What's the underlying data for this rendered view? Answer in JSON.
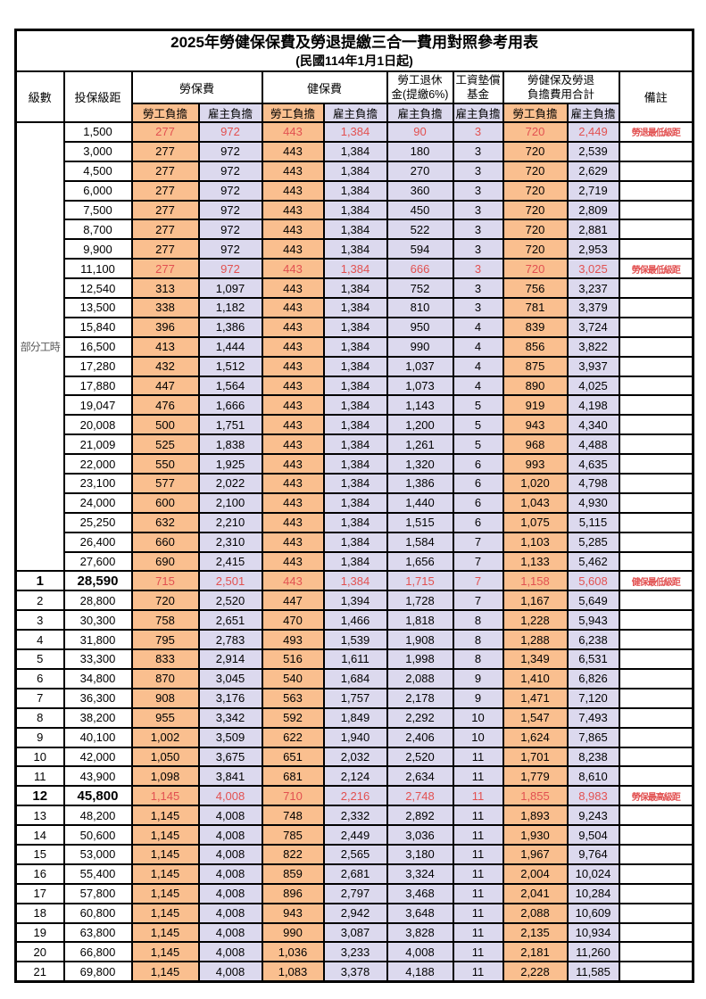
{
  "title": "2025年勞健保保費及勞退提繳三合一費用對照參考用表",
  "subtitle": "(民國114年1月1日起)",
  "header": {
    "level": "級數",
    "bracket": "投保級距",
    "labor_insurance": "勞保費",
    "health_insurance": "健保費",
    "pension_line1": "勞工退休",
    "pension_line2": "金(提繳6%)",
    "wage_fund_line1": "工資墊償",
    "wage_fund_line2": "基金",
    "total_line1": "勞健保及勞退",
    "total_line2": "負擔費用合計",
    "remark": "備註",
    "employee_label": "勞工負擔",
    "employer_label": "雇主負擔"
  },
  "colors": {
    "employee_bg": "#fabf8f",
    "employer_bg": "#dcd9ee",
    "highlight_red": "#e25151"
  },
  "part_time_label": "部分工時",
  "part_time_rowspan": 23,
  "rows": [
    {
      "level": "",
      "bracket": "1,500",
      "values": [
        "277",
        "972",
        "443",
        "1,384",
        "90",
        "3",
        "720",
        "2,449"
      ],
      "remark": "勞退最低級距",
      "red": true,
      "bold": false
    },
    {
      "level": "",
      "bracket": "3,000",
      "values": [
        "277",
        "972",
        "443",
        "1,384",
        "180",
        "3",
        "720",
        "2,539"
      ],
      "remark": "",
      "red": false,
      "bold": false
    },
    {
      "level": "",
      "bracket": "4,500",
      "values": [
        "277",
        "972",
        "443",
        "1,384",
        "270",
        "3",
        "720",
        "2,629"
      ],
      "remark": "",
      "red": false,
      "bold": false
    },
    {
      "level": "",
      "bracket": "6,000",
      "values": [
        "277",
        "972",
        "443",
        "1,384",
        "360",
        "3",
        "720",
        "2,719"
      ],
      "remark": "",
      "red": false,
      "bold": false
    },
    {
      "level": "",
      "bracket": "7,500",
      "values": [
        "277",
        "972",
        "443",
        "1,384",
        "450",
        "3",
        "720",
        "2,809"
      ],
      "remark": "",
      "red": false,
      "bold": false
    },
    {
      "level": "",
      "bracket": "8,700",
      "values": [
        "277",
        "972",
        "443",
        "1,384",
        "522",
        "3",
        "720",
        "2,881"
      ],
      "remark": "",
      "red": false,
      "bold": false
    },
    {
      "level": "",
      "bracket": "9,900",
      "values": [
        "277",
        "972",
        "443",
        "1,384",
        "594",
        "3",
        "720",
        "2,953"
      ],
      "remark": "",
      "red": false,
      "bold": false
    },
    {
      "level": "",
      "bracket": "11,100",
      "values": [
        "277",
        "972",
        "443",
        "1,384",
        "666",
        "3",
        "720",
        "3,025"
      ],
      "remark": "勞保最低級距",
      "red": true,
      "bold": false
    },
    {
      "level": "",
      "bracket": "12,540",
      "values": [
        "313",
        "1,097",
        "443",
        "1,384",
        "752",
        "3",
        "756",
        "3,237"
      ],
      "remark": "",
      "red": false,
      "bold": false
    },
    {
      "level": "",
      "bracket": "13,500",
      "values": [
        "338",
        "1,182",
        "443",
        "1,384",
        "810",
        "3",
        "781",
        "3,379"
      ],
      "remark": "",
      "red": false,
      "bold": false
    },
    {
      "level": "",
      "bracket": "15,840",
      "values": [
        "396",
        "1,386",
        "443",
        "1,384",
        "950",
        "4",
        "839",
        "3,724"
      ],
      "remark": "",
      "red": false,
      "bold": false
    },
    {
      "level": "",
      "bracket": "16,500",
      "values": [
        "413",
        "1,444",
        "443",
        "1,384",
        "990",
        "4",
        "856",
        "3,822"
      ],
      "remark": "",
      "red": false,
      "bold": false
    },
    {
      "level": "",
      "bracket": "17,280",
      "values": [
        "432",
        "1,512",
        "443",
        "1,384",
        "1,037",
        "4",
        "875",
        "3,937"
      ],
      "remark": "",
      "red": false,
      "bold": false
    },
    {
      "level": "",
      "bracket": "17,880",
      "values": [
        "447",
        "1,564",
        "443",
        "1,384",
        "1,073",
        "4",
        "890",
        "4,025"
      ],
      "remark": "",
      "red": false,
      "bold": false
    },
    {
      "level": "",
      "bracket": "19,047",
      "values": [
        "476",
        "1,666",
        "443",
        "1,384",
        "1,143",
        "5",
        "919",
        "4,198"
      ],
      "remark": "",
      "red": false,
      "bold": false
    },
    {
      "level": "",
      "bracket": "20,008",
      "values": [
        "500",
        "1,751",
        "443",
        "1,384",
        "1,200",
        "5",
        "943",
        "4,340"
      ],
      "remark": "",
      "red": false,
      "bold": false
    },
    {
      "level": "",
      "bracket": "21,009",
      "values": [
        "525",
        "1,838",
        "443",
        "1,384",
        "1,261",
        "5",
        "968",
        "4,488"
      ],
      "remark": "",
      "red": false,
      "bold": false
    },
    {
      "level": "",
      "bracket": "22,000",
      "values": [
        "550",
        "1,925",
        "443",
        "1,384",
        "1,320",
        "6",
        "993",
        "4,635"
      ],
      "remark": "",
      "red": false,
      "bold": false
    },
    {
      "level": "",
      "bracket": "23,100",
      "values": [
        "577",
        "2,022",
        "443",
        "1,384",
        "1,386",
        "6",
        "1,020",
        "4,798"
      ],
      "remark": "",
      "red": false,
      "bold": false
    },
    {
      "level": "",
      "bracket": "24,000",
      "values": [
        "600",
        "2,100",
        "443",
        "1,384",
        "1,440",
        "6",
        "1,043",
        "4,930"
      ],
      "remark": "",
      "red": false,
      "bold": false
    },
    {
      "level": "",
      "bracket": "25,250",
      "values": [
        "632",
        "2,210",
        "443",
        "1,384",
        "1,515",
        "6",
        "1,075",
        "5,115"
      ],
      "remark": "",
      "red": false,
      "bold": false
    },
    {
      "level": "",
      "bracket": "26,400",
      "values": [
        "660",
        "2,310",
        "443",
        "1,384",
        "1,584",
        "7",
        "1,103",
        "5,285"
      ],
      "remark": "",
      "red": false,
      "bold": false
    },
    {
      "level": "",
      "bracket": "27,600",
      "values": [
        "690",
        "2,415",
        "443",
        "1,384",
        "1,656",
        "7",
        "1,133",
        "5,462"
      ],
      "remark": "",
      "red": false,
      "bold": false
    },
    {
      "level": "1",
      "bracket": "28,590",
      "values": [
        "715",
        "2,501",
        "443",
        "1,384",
        "1,715",
        "7",
        "1,158",
        "5,608"
      ],
      "remark": "健保最低級距",
      "red": true,
      "bold": true
    },
    {
      "level": "2",
      "bracket": "28,800",
      "values": [
        "720",
        "2,520",
        "447",
        "1,394",
        "1,728",
        "7",
        "1,167",
        "5,649"
      ],
      "remark": "",
      "red": false,
      "bold": false
    },
    {
      "level": "3",
      "bracket": "30,300",
      "values": [
        "758",
        "2,651",
        "470",
        "1,466",
        "1,818",
        "8",
        "1,228",
        "5,943"
      ],
      "remark": "",
      "red": false,
      "bold": false
    },
    {
      "level": "4",
      "bracket": "31,800",
      "values": [
        "795",
        "2,783",
        "493",
        "1,539",
        "1,908",
        "8",
        "1,288",
        "6,238"
      ],
      "remark": "",
      "red": false,
      "bold": false
    },
    {
      "level": "5",
      "bracket": "33,300",
      "values": [
        "833",
        "2,914",
        "516",
        "1,611",
        "1,998",
        "8",
        "1,349",
        "6,531"
      ],
      "remark": "",
      "red": false,
      "bold": false
    },
    {
      "level": "6",
      "bracket": "34,800",
      "values": [
        "870",
        "3,045",
        "540",
        "1,684",
        "2,088",
        "9",
        "1,410",
        "6,826"
      ],
      "remark": "",
      "red": false,
      "bold": false
    },
    {
      "level": "7",
      "bracket": "36,300",
      "values": [
        "908",
        "3,176",
        "563",
        "1,757",
        "2,178",
        "9",
        "1,471",
        "7,120"
      ],
      "remark": "",
      "red": false,
      "bold": false
    },
    {
      "level": "8",
      "bracket": "38,200",
      "values": [
        "955",
        "3,342",
        "592",
        "1,849",
        "2,292",
        "10",
        "1,547",
        "7,493"
      ],
      "remark": "",
      "red": false,
      "bold": false
    },
    {
      "level": "9",
      "bracket": "40,100",
      "values": [
        "1,002",
        "3,509",
        "622",
        "1,940",
        "2,406",
        "10",
        "1,624",
        "7,865"
      ],
      "remark": "",
      "red": false,
      "bold": false
    },
    {
      "level": "10",
      "bracket": "42,000",
      "values": [
        "1,050",
        "3,675",
        "651",
        "2,032",
        "2,520",
        "11",
        "1,701",
        "8,238"
      ],
      "remark": "",
      "red": false,
      "bold": false
    },
    {
      "level": "11",
      "bracket": "43,900",
      "values": [
        "1,098",
        "3,841",
        "681",
        "2,124",
        "2,634",
        "11",
        "1,779",
        "8,610"
      ],
      "remark": "",
      "red": false,
      "bold": false
    },
    {
      "level": "12",
      "bracket": "45,800",
      "values": [
        "1,145",
        "4,008",
        "710",
        "2,216",
        "2,748",
        "11",
        "1,855",
        "8,983"
      ],
      "remark": "勞保最高級距",
      "red": true,
      "bold": true
    },
    {
      "level": "13",
      "bracket": "48,200",
      "values": [
        "1,145",
        "4,008",
        "748",
        "2,332",
        "2,892",
        "11",
        "1,893",
        "9,243"
      ],
      "remark": "",
      "red": false,
      "bold": false
    },
    {
      "level": "14",
      "bracket": "50,600",
      "values": [
        "1,145",
        "4,008",
        "785",
        "2,449",
        "3,036",
        "11",
        "1,930",
        "9,504"
      ],
      "remark": "",
      "red": false,
      "bold": false
    },
    {
      "level": "15",
      "bracket": "53,000",
      "values": [
        "1,145",
        "4,008",
        "822",
        "2,565",
        "3,180",
        "11",
        "1,967",
        "9,764"
      ],
      "remark": "",
      "red": false,
      "bold": false
    },
    {
      "level": "16",
      "bracket": "55,400",
      "values": [
        "1,145",
        "4,008",
        "859",
        "2,681",
        "3,324",
        "11",
        "2,004",
        "10,024"
      ],
      "remark": "",
      "red": false,
      "bold": false
    },
    {
      "level": "17",
      "bracket": "57,800",
      "values": [
        "1,145",
        "4,008",
        "896",
        "2,797",
        "3,468",
        "11",
        "2,041",
        "10,284"
      ],
      "remark": "",
      "red": false,
      "bold": false
    },
    {
      "level": "18",
      "bracket": "60,800",
      "values": [
        "1,145",
        "4,008",
        "943",
        "2,942",
        "3,648",
        "11",
        "2,088",
        "10,609"
      ],
      "remark": "",
      "red": false,
      "bold": false
    },
    {
      "level": "19",
      "bracket": "63,800",
      "values": [
        "1,145",
        "4,008",
        "990",
        "3,087",
        "3,828",
        "11",
        "2,135",
        "10,934"
      ],
      "remark": "",
      "red": false,
      "bold": false
    },
    {
      "level": "20",
      "bracket": "66,800",
      "values": [
        "1,145",
        "4,008",
        "1,036",
        "3,233",
        "4,008",
        "11",
        "2,181",
        "11,260"
      ],
      "remark": "",
      "red": false,
      "bold": false
    },
    {
      "level": "21",
      "bracket": "69,800",
      "values": [
        "1,145",
        "4,008",
        "1,083",
        "3,378",
        "4,188",
        "11",
        "2,228",
        "11,585"
      ],
      "remark": "",
      "red": false,
      "bold": false
    }
  ]
}
